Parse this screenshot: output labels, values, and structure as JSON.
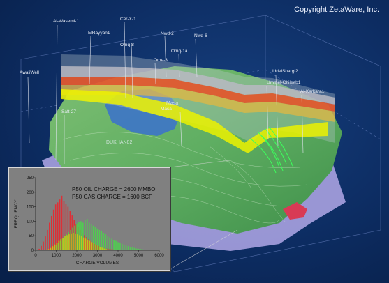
{
  "copyright": "Copyright ZetaWare, Inc.",
  "scene": {
    "well_labels": [
      "Al-Wasemi-1",
      "Cer-X-1",
      "ElRayyan1",
      "Omq-8",
      "Nwd-2",
      "Nwd-6",
      "Omq-1a",
      "Ome-3",
      "AwaliWell",
      "IddelShargi2",
      "Ummel-Chileeb1",
      "Al-Karkara1",
      "Saft-27",
      "Masa"
    ],
    "surface_labels": [
      "DUKHAN82",
      "Masa"
    ]
  },
  "histogram": {
    "annotations": [
      "P50 OIL CHARGE = 2600 MMBO",
      "P50 GAS CHARGE = 1600 BCF"
    ],
    "chart_data": {
      "type": "bar",
      "xlabel": "CHARGE VOLUMES",
      "ylabel": "FREQUENCY",
      "xlim": [
        0,
        6000
      ],
      "ylim": [
        0,
        250
      ],
      "x_ticks": [
        "0",
        "1000",
        "2000",
        "3000",
        "4000",
        "5000",
        "6000"
      ],
      "y_ticks": [
        "0",
        "50",
        "100",
        "150",
        "200",
        "250"
      ],
      "bin_width": 100,
      "series": [
        {
          "color": "#e8262e",
          "x": [
            200,
            300,
            400,
            500,
            600,
            700,
            800,
            900,
            1000,
            1100,
            1200,
            1300,
            1400,
            1500,
            1600,
            1700,
            1800,
            1900,
            2000,
            2100,
            2200,
            2300,
            2400,
            2500,
            2600,
            2700,
            2800,
            2900,
            3000,
            3100,
            3200,
            3300,
            3400,
            3500,
            3600,
            3700,
            3800,
            3900,
            4000
          ],
          "values": [
            5,
            15,
            30,
            48,
            70,
            95,
            118,
            140,
            158,
            165,
            175,
            188,
            170,
            160,
            150,
            135,
            120,
            105,
            90,
            80,
            70,
            60,
            52,
            45,
            38,
            32,
            27,
            22,
            18,
            15,
            12,
            10,
            8,
            6,
            5,
            4,
            3,
            2,
            1
          ]
        },
        {
          "color": "#49d64a",
          "x": [
            800,
            900,
            1000,
            1100,
            1200,
            1300,
            1400,
            1500,
            1600,
            1700,
            1800,
            1900,
            2000,
            2100,
            2200,
            2300,
            2400,
            2500,
            2600,
            2700,
            2800,
            2900,
            3000,
            3100,
            3200,
            3300,
            3400,
            3500,
            3600,
            3700,
            3800,
            3900,
            4000,
            4100,
            4200,
            4300,
            4400,
            4500,
            4600,
            4700,
            4800,
            4900,
            5000,
            5100,
            5200
          ],
          "values": [
            5,
            10,
            18,
            25,
            32,
            40,
            48,
            55,
            62,
            70,
            78,
            85,
            92,
            98,
            100,
            95,
            105,
            108,
            95,
            90,
            85,
            80,
            75,
            70,
            66,
            60,
            55,
            50,
            45,
            40,
            36,
            32,
            28,
            25,
            22,
            19,
            16,
            14,
            12,
            10,
            8,
            6,
            5,
            4,
            3
          ]
        },
        {
          "color": "#c7c61d",
          "x": [
            600,
            700,
            800,
            900,
            1000,
            1100,
            1200,
            1300,
            1400,
            1500,
            1600,
            1700,
            1800,
            1900,
            2000,
            2100,
            2200,
            2300,
            2400,
            2500,
            2600,
            2700,
            2800,
            2900,
            3000,
            3100,
            3200,
            3300,
            3400
          ],
          "values": [
            4,
            8,
            14,
            20,
            26,
            32,
            38,
            42,
            48,
            52,
            55,
            58,
            60,
            58,
            55,
            52,
            48,
            44,
            40,
            36,
            32,
            28,
            24,
            20,
            16,
            12,
            9,
            6,
            4
          ]
        }
      ]
    }
  }
}
